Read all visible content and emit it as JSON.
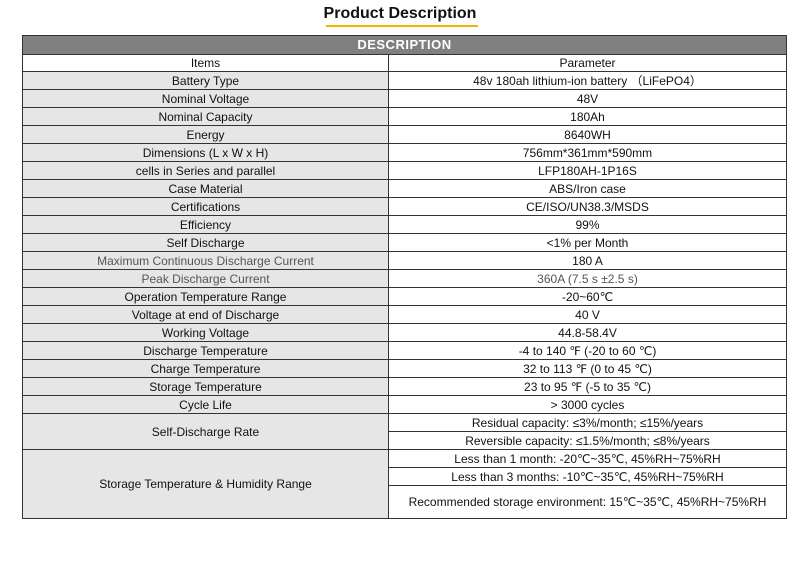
{
  "title": "Product Description",
  "table": {
    "section_header": "DESCRIPTION",
    "col_headers": {
      "items": "Items",
      "parameter": "Parameter"
    },
    "rows": [
      {
        "item": "Battery Type",
        "value": "48v 180ah lithium-ion battery （LiFePO4）"
      },
      {
        "item": "Nominal Voltage",
        "value": "48V"
      },
      {
        "item": "Nominal Capacity",
        "value": "180Ah"
      },
      {
        "item": "Energy",
        "value": "8640WH"
      },
      {
        "item": "Dimensions (L x W x H)",
        "value": "756mm*361mm*590mm"
      },
      {
        "item": "cells in Series and parallel",
        "value": "LFP180AH-1P16S"
      },
      {
        "item": "Case Material",
        "value": "ABS/Iron case"
      },
      {
        "item": "Certifications",
        "value": "CE/ISO/UN38.3/MSDS"
      },
      {
        "item": "Efficiency",
        "value": "99%"
      },
      {
        "item": "Self Discharge",
        "value": "<1% per Month"
      },
      {
        "item": "Maximum Continuous Discharge Current",
        "value": "180 A"
      },
      {
        "item": "Peak Discharge Current",
        "value": "360A (7.5 s  ±2.5 s)"
      },
      {
        "item": "Operation Temperature Range",
        "value": "-20~60℃"
      },
      {
        "item": "Voltage at end of Discharge",
        "value": "40 V"
      },
      {
        "item": "Working Voltage",
        "value": "44.8-58.4V"
      },
      {
        "item": "Discharge Temperature",
        "value": "-4 to 140 ℉ (-20 to 60 ℃)"
      },
      {
        "item": "Charge Temperature",
        "value": "32 to 113 ℉ (0 to 45 ℃)"
      },
      {
        "item": "Storage Temperature",
        "value": "23 to 95 ℉ (-5 to 35 ℃)"
      },
      {
        "item": "Cycle Life",
        "value": "> 3000 cycles"
      }
    ],
    "self_discharge_rate": {
      "item": "Self-Discharge Rate",
      "values": [
        "Residual capacity: ≤3%/month; ≤15%/years",
        "Reversible capacity: ≤1.5%/month; ≤8%/years"
      ]
    },
    "storage_range": {
      "item": "Storage Temperature & Humidity Range",
      "values": [
        "Less than 1 month: -20℃~35℃, 45%RH~75%RH",
        "Less than 3 months: -10℃~35℃, 45%RH~75%RH",
        "Recommended storage environment: 15℃~35℃, 45%RH~75%RH"
      ]
    }
  }
}
